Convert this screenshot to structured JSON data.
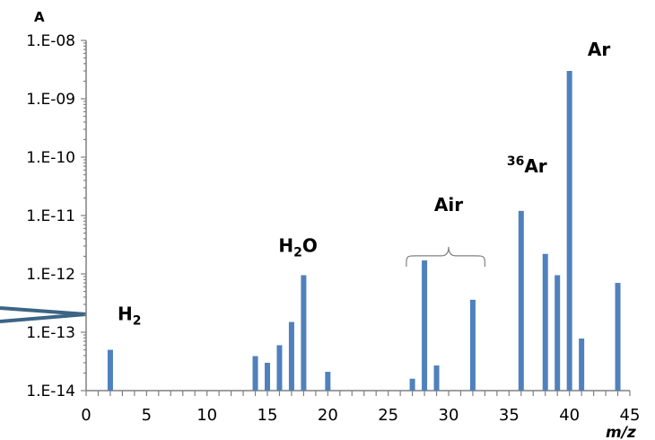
{
  "chart_data": {
    "type": "bar",
    "y_unit_label": "A",
    "x_unit_label": "m/z",
    "y_scale": "log",
    "ylim": [
      1e-14,
      1e-08
    ],
    "xlim": [
      0,
      45
    ],
    "x_ticks": [
      0,
      5,
      10,
      15,
      20,
      25,
      30,
      35,
      40,
      45
    ],
    "x_tick_labels": [
      "0",
      "5",
      "10",
      "15",
      "20",
      "25",
      "30",
      "35",
      "40",
      "45"
    ],
    "y_ticks": [
      1e-14,
      1e-13,
      1e-12,
      1e-11,
      1e-10,
      1e-09,
      1e-08
    ],
    "y_tick_labels": [
      "1.E-14",
      "1.E-13",
      "1.E-12",
      "1.E-11",
      "1.E-10",
      "1.E-09",
      "1.E-08"
    ],
    "grid": false,
    "bar_color": "#4f81bd",
    "bars": [
      {
        "x": 2,
        "y": 5e-14
      },
      {
        "x": 14,
        "y": 3.9e-14
      },
      {
        "x": 15,
        "y": 3e-14
      },
      {
        "x": 16,
        "y": 6e-14
      },
      {
        "x": 17,
        "y": 1.5e-13
      },
      {
        "x": 18,
        "y": 9.5e-13
      },
      {
        "x": 20,
        "y": 2.1e-14
      },
      {
        "x": 27,
        "y": 1.6e-14
      },
      {
        "x": 28,
        "y": 1.7e-12
      },
      {
        "x": 29,
        "y": 2.7e-14
      },
      {
        "x": 32,
        "y": 3.6e-13
      },
      {
        "x": 36,
        "y": 1.2e-11
      },
      {
        "x": 38,
        "y": 2.2e-12
      },
      {
        "x": 39,
        "y": 9.5e-13
      },
      {
        "x": 40,
        "y": 3e-09
      },
      {
        "x": 41,
        "y": 7.8e-14
      },
      {
        "x": 44,
        "y": 7e-13
      }
    ],
    "annotations": [
      {
        "id": "h2",
        "base": "H",
        "sub": "2",
        "x": 2.6,
        "y": 1.6e-13
      },
      {
        "id": "h2o",
        "base": "H",
        "sub": "2",
        "rest": "O",
        "x": 18,
        "y": 2.4e-12
      },
      {
        "id": "air",
        "text": "Air",
        "x": 30,
        "y": 1.2e-11,
        "bracket_from": 26.5,
        "bracket_to": 33
      },
      {
        "id": "ar36",
        "sup": "36",
        "base": "Ar",
        "x": 36.3,
        "y": 5.5e-11
      },
      {
        "id": "ar",
        "text": "Ar",
        "x": 41.5,
        "y": 5.5e-09
      }
    ],
    "annotation_texts": {
      "h2_base": "H",
      "h2_sub": "2",
      "h2o_base": "H",
      "h2o_sub": "2",
      "h2o_rest": "O",
      "air": "Air",
      "ar36_sup": "36",
      "ar36_base": "Ar",
      "ar": "Ar"
    }
  }
}
